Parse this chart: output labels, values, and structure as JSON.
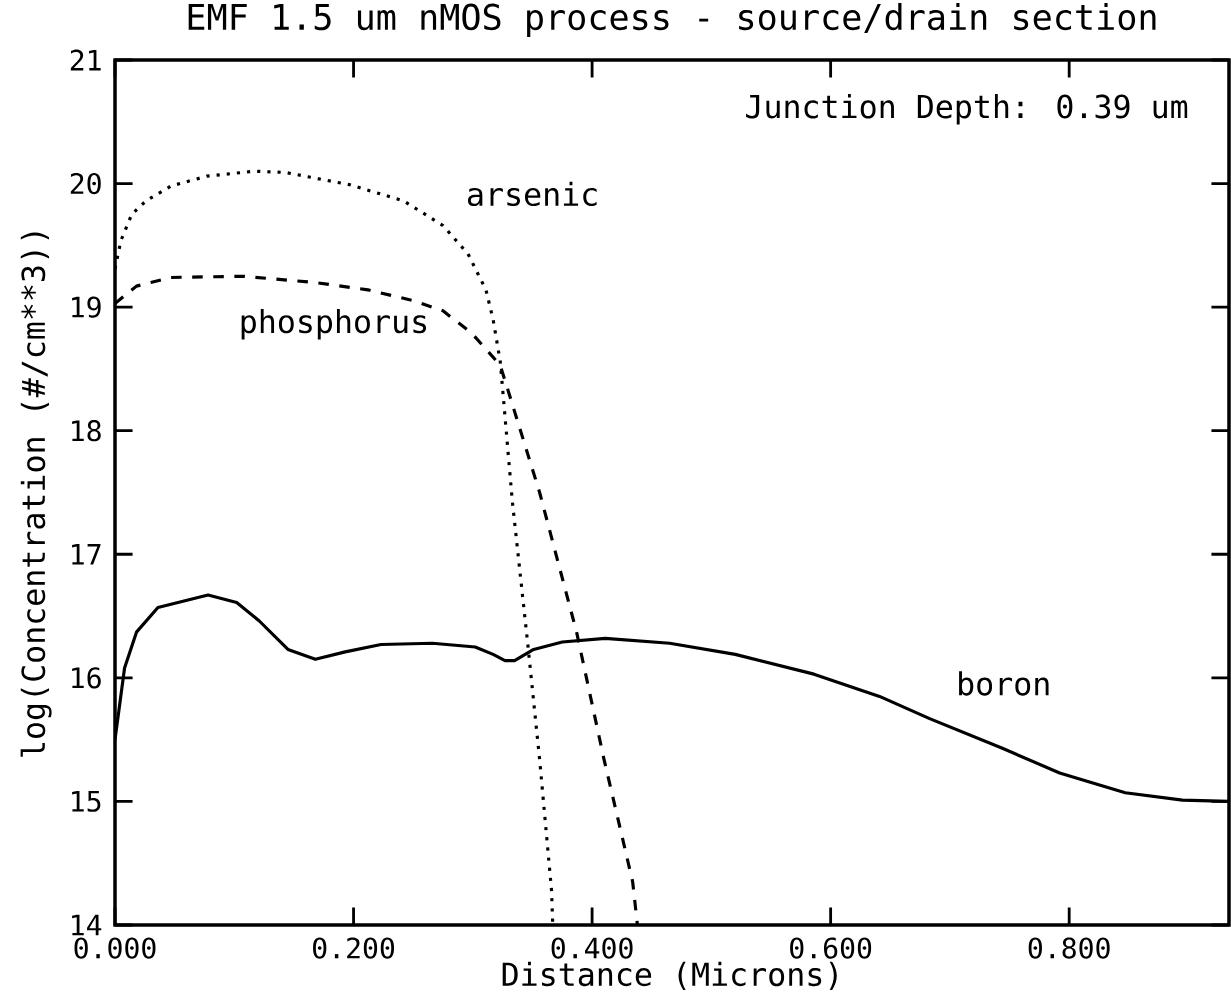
{
  "chart_data": {
    "type": "line",
    "title": "EMF 1.5 um nMOS process - source/drain section",
    "xlabel": "Distance (Microns)",
    "ylabel": "log(Concentration (#/cm**3))",
    "annotations": [
      "Junction Depth: 0.39 um"
    ],
    "xlim": [
      0,
      0.934
    ],
    "ylim": [
      14,
      21
    ],
    "xticks": [
      {
        "value": 0,
        "label": "0.000"
      },
      {
        "value": 0.2,
        "label": "0.200"
      },
      {
        "value": 0.4,
        "label": "0.400"
      },
      {
        "value": 0.6,
        "label": "0.600"
      },
      {
        "value": 0.8,
        "label": "0.800"
      }
    ],
    "yticks": [
      14,
      15,
      16,
      17,
      18,
      19,
      20,
      21
    ],
    "grid": false,
    "legend": false,
    "marker": "none",
    "series": [
      {
        "name": "arsenic",
        "color": "#000000",
        "line_style": "dotted",
        "x": [
          0,
          0.005,
          0.014,
          0.026,
          0.047,
          0.077,
          0.117,
          0.143,
          0.197,
          0.242,
          0.275,
          0.296,
          0.311,
          0.317,
          0.323,
          0.333,
          0.346,
          0.356,
          0.366,
          0.367
        ],
        "values": [
          19.31,
          19.54,
          19.75,
          19.86,
          19.98,
          20.06,
          20.1,
          20.09,
          19.99,
          19.86,
          19.66,
          19.43,
          19.14,
          18.9,
          18.56,
          17.44,
          16.28,
          15.34,
          14.28,
          14.0
        ]
      },
      {
        "name": "phosphorus",
        "color": "#000000",
        "line_style": "dashed",
        "x": [
          0,
          0.018,
          0.047,
          0.107,
          0.167,
          0.212,
          0.251,
          0.275,
          0.299,
          0.323,
          0.356,
          0.387,
          0.41,
          0.434,
          0.438
        ],
        "values": [
          19.03,
          19.17,
          19.24,
          19.25,
          19.2,
          19.14,
          19.05,
          18.97,
          18.79,
          18.53,
          17.5,
          16.37,
          15.34,
          14.35,
          14.0
        ]
      },
      {
        "name": "boron",
        "color": "#000000",
        "line_style": "solid",
        "x": [
          0,
          0.008,
          0.018,
          0.036,
          0.078,
          0.102,
          0.121,
          0.145,
          0.168,
          0.193,
          0.223,
          0.266,
          0.302,
          0.317,
          0.327,
          0.335,
          0.351,
          0.375,
          0.411,
          0.465,
          0.52,
          0.586,
          0.641,
          0.683,
          0.744,
          0.792,
          0.847,
          0.895,
          0.934
        ],
        "values": [
          15.5,
          16.08,
          16.37,
          16.57,
          16.67,
          16.61,
          16.46,
          16.23,
          16.15,
          16.21,
          16.27,
          16.28,
          16.25,
          16.19,
          16.14,
          16.14,
          16.23,
          16.29,
          16.32,
          16.28,
          16.19,
          16.03,
          15.85,
          15.67,
          15.43,
          15.23,
          15.07,
          15.01,
          15.0
        ]
      }
    ]
  }
}
